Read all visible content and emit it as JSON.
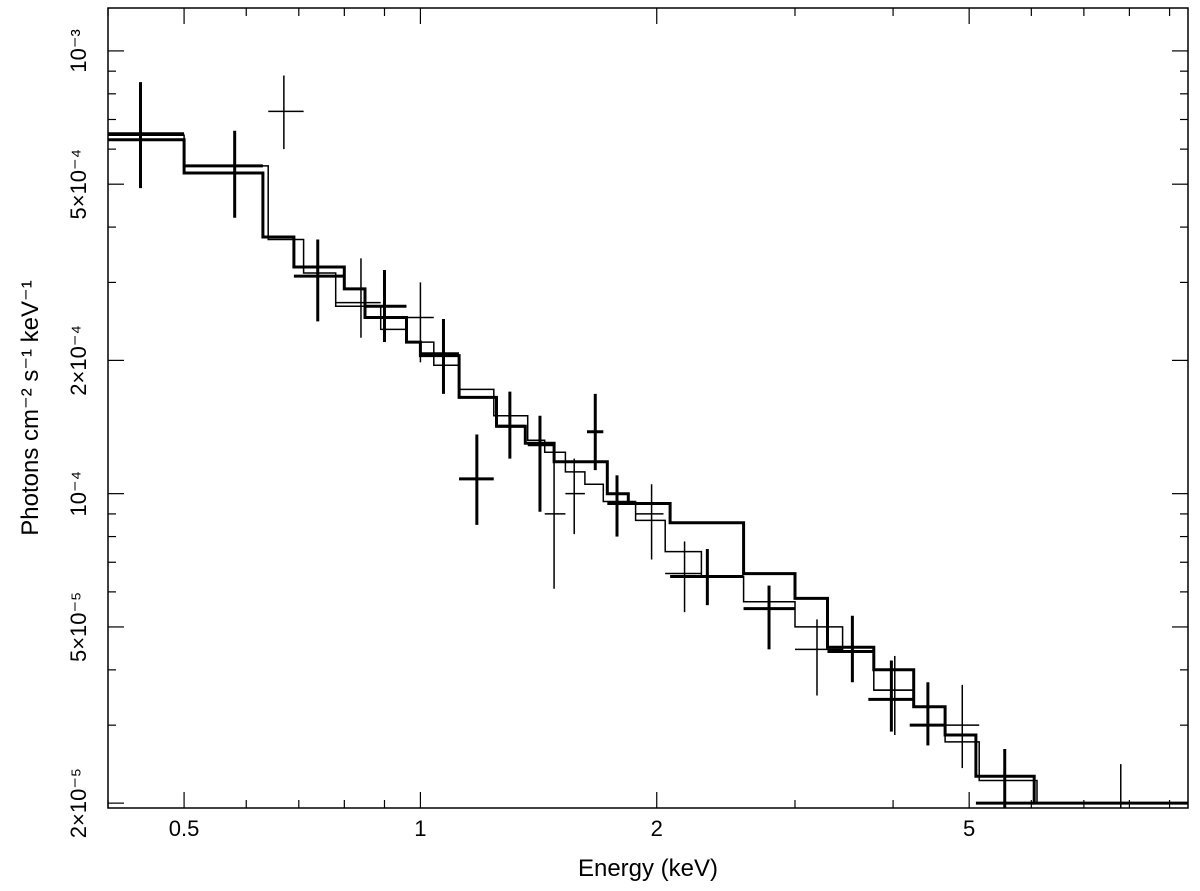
{
  "chart_data": {
    "type": "scatter",
    "xlabel": "Energy (keV)",
    "ylabel": "Photons cm⁻² s⁻¹ keV⁻¹",
    "x_scale": "log",
    "y_scale": "log",
    "xlim": [
      0.4,
      9.5
    ],
    "ylim": [
      1.95e-05,
      0.00125
    ],
    "x_ticks": [
      {
        "value": 0.5,
        "label": "0.5"
      },
      {
        "value": 1,
        "label": "1"
      },
      {
        "value": 2,
        "label": "2"
      },
      {
        "value": 5,
        "label": "5"
      }
    ],
    "y_ticks": [
      {
        "value": 2e-05,
        "label": "2×10⁻⁵"
      },
      {
        "value": 5e-05,
        "label": "5×10⁻⁵"
      },
      {
        "value": 0.0001,
        "label": "10⁻⁴"
      },
      {
        "value": 0.0002,
        "label": "2×10⁻⁴"
      },
      {
        "value": 0.0005,
        "label": "5×10⁻⁴"
      },
      {
        "value": 0.001,
        "label": "10⁻³"
      }
    ],
    "grid": false,
    "legend": "none",
    "series": [
      {
        "style": "thick",
        "points": [
          {
            "x": 0.44,
            "x_lo": 0.4,
            "x_hi": 0.5,
            "y": 0.00065,
            "y_lo": 0.00049,
            "y_hi": 0.00085
          },
          {
            "x": 0.58,
            "x_lo": 0.5,
            "x_hi": 0.63,
            "y": 0.00055,
            "y_lo": 0.00042,
            "y_hi": 0.00066
          },
          {
            "x": 0.74,
            "x_lo": 0.69,
            "x_hi": 0.8,
            "y": 0.00031,
            "y_lo": 0.000245,
            "y_hi": 0.000375
          },
          {
            "x": 0.9,
            "x_lo": 0.85,
            "x_hi": 0.96,
            "y": 0.000265,
            "y_lo": 0.00022,
            "y_hi": 0.00032
          },
          {
            "x": 1.07,
            "x_lo": 1.0,
            "x_hi": 1.12,
            "y": 0.000207,
            "y_lo": 0.000168,
            "y_hi": 0.000248
          },
          {
            "x": 1.18,
            "x_lo": 1.12,
            "x_hi": 1.24,
            "y": 0.000108,
            "y_lo": 8.5e-05,
            "y_hi": 0.000136
          },
          {
            "x": 1.3,
            "x_lo": 1.25,
            "x_hi": 1.36,
            "y": 0.000142,
            "y_lo": 0.00012,
            "y_hi": 0.00017
          },
          {
            "x": 1.42,
            "x_lo": 1.37,
            "x_hi": 1.48,
            "y": 0.000129,
            "y_lo": 9.1e-05,
            "y_hi": 0.00015
          },
          {
            "x": 1.67,
            "x_lo": 1.63,
            "x_hi": 1.71,
            "y": 0.000138,
            "y_lo": 0.000113,
            "y_hi": 0.000168
          },
          {
            "x": 1.78,
            "x_lo": 1.73,
            "x_hi": 1.84,
            "y": 9.5e-05,
            "y_lo": 8e-05,
            "y_hi": 0.00011
          },
          {
            "x": 2.32,
            "x_lo": 2.08,
            "x_hi": 2.58,
            "y": 6.5e-05,
            "y_lo": 5.6e-05,
            "y_hi": 7.5e-05
          },
          {
            "x": 2.78,
            "x_lo": 2.58,
            "x_hi": 3.0,
            "y": 5.5e-05,
            "y_lo": 4.45e-05,
            "y_hi": 6.2e-05
          },
          {
            "x": 3.55,
            "x_lo": 3.3,
            "x_hi": 3.78,
            "y": 4.4e-05,
            "y_lo": 3.75e-05,
            "y_hi": 5.3e-05
          },
          {
            "x": 3.98,
            "x_lo": 3.72,
            "x_hi": 4.25,
            "y": 3.43e-05,
            "y_lo": 2.9e-05,
            "y_hi": 4.2e-05
          },
          {
            "x": 4.43,
            "x_lo": 4.2,
            "x_hi": 4.66,
            "y": 3e-05,
            "y_lo": 2.7e-05,
            "y_hi": 3.75e-05
          },
          {
            "x": 5.55,
            "x_lo": 5.1,
            "x_hi": 6.05,
            "y": 2e-05,
            "y_lo": 1.95e-05,
            "y_hi": 2.65e-05
          }
        ]
      },
      {
        "style": "thin",
        "points": [
          {
            "x": 0.67,
            "x_lo": 0.64,
            "x_hi": 0.71,
            "y": 0.00073,
            "y_lo": 0.0006,
            "y_hi": 0.00088
          },
          {
            "x": 0.84,
            "x_lo": 0.78,
            "x_hi": 0.89,
            "y": 0.00027,
            "y_lo": 0.000225,
            "y_hi": 0.00034
          },
          {
            "x": 1.0,
            "x_lo": 0.96,
            "x_hi": 1.04,
            "y": 0.00025,
            "y_lo": 0.000198,
            "y_hi": 0.0003
          },
          {
            "x": 1.48,
            "x_lo": 1.44,
            "x_hi": 1.53,
            "y": 9e-05,
            "y_lo": 6.1e-05,
            "y_hi": 0.00013
          },
          {
            "x": 1.57,
            "x_lo": 1.53,
            "x_hi": 1.62,
            "y": 0.0001,
            "y_lo": 8.1e-05,
            "y_hi": 0.00012
          },
          {
            "x": 1.97,
            "x_lo": 1.88,
            "x_hi": 2.04,
            "y": 9e-05,
            "y_lo": 7.1e-05,
            "y_hi": 0.000105
          },
          {
            "x": 2.17,
            "x_lo": 2.05,
            "x_hi": 2.28,
            "y": 6.6e-05,
            "y_lo": 5.4e-05,
            "y_hi": 7.8e-05
          },
          {
            "x": 3.2,
            "x_lo": 3.0,
            "x_hi": 3.45,
            "y": 4.45e-05,
            "y_lo": 3.5e-05,
            "y_hi": 5.2e-05
          },
          {
            "x": 4.02,
            "x_lo": 3.78,
            "x_hi": 4.25,
            "y": 3.6e-05,
            "y_lo": 2.85e-05,
            "y_hi": 4.3e-05
          },
          {
            "x": 4.9,
            "x_lo": 4.66,
            "x_hi": 5.15,
            "y": 3e-05,
            "y_lo": 2.4e-05,
            "y_hi": 3.7e-05
          },
          {
            "x": 7.8,
            "x_lo": 6.1,
            "x_hi": 9.5,
            "y": 2e-05,
            "y_lo": 1.95e-05,
            "y_hi": 2.45e-05
          }
        ]
      }
    ],
    "model": [
      {
        "style": "thick",
        "edges": [
          0.4,
          0.5,
          0.63,
          0.69,
          0.8,
          0.85,
          0.96,
          1.0,
          1.12,
          1.25,
          1.36,
          1.48,
          1.73,
          1.84,
          2.08,
          2.58,
          3.0,
          3.3,
          3.78,
          4.25,
          4.66,
          5.1,
          6.05,
          9.5
        ],
        "values": [
          0.00063,
          0.00053,
          0.00038,
          0.000325,
          0.00029,
          0.00025,
          0.00022,
          0.000205,
          0.000165,
          0.000142,
          0.00013,
          0.000118,
          0.0001,
          9.5e-05,
          8.6e-05,
          6.6e-05,
          5.8e-05,
          4.5e-05,
          4e-05,
          3.3e-05,
          2.85e-05,
          2.3e-05,
          2e-05
        ]
      },
      {
        "style": "thin",
        "edges": [
          0.4,
          0.5,
          0.64,
          0.71,
          0.78,
          0.89,
          0.96,
          1.04,
          1.12,
          1.24,
          1.37,
          1.44,
          1.53,
          1.62,
          1.71,
          1.88,
          2.05,
          2.28,
          2.58,
          3.0,
          3.45,
          3.78,
          4.25,
          4.66,
          5.15,
          6.1,
          9.5
        ],
        "values": [
          0.000645,
          0.00055,
          0.000375,
          0.000315,
          0.000265,
          0.000235,
          0.00022,
          0.000195,
          0.000172,
          0.00015,
          0.000132,
          0.000124,
          0.000112,
          0.000105,
          9.6e-05,
          8.7e-05,
          7.4e-05,
          6.5e-05,
          5.7e-05,
          5e-05,
          4.4e-05,
          3.6e-05,
          3.3e-05,
          2.75e-05,
          2.25e-05,
          2e-05
        ]
      }
    ]
  }
}
